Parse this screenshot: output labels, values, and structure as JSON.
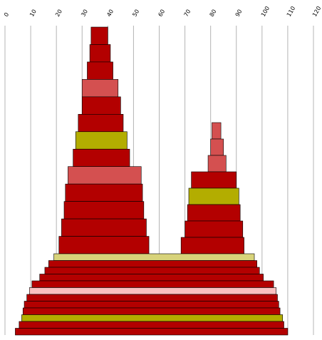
{
  "chart_data": {
    "type": "bar",
    "orientation": "horizontal",
    "grid": true,
    "legend": "none",
    "x_axis": {
      "position": "top",
      "range": [
        0,
        120
      ],
      "ticks": [
        "0",
        "10",
        "20",
        "30",
        "40",
        "50",
        "60",
        "70",
        "80",
        "90",
        "100",
        "110",
        "120"
      ]
    },
    "colors": {
      "red": "#b30000",
      "salmon": "#d45050",
      "olive": "#b3ad00",
      "pink": "#fac0c0",
      "light_olive": "#d8d37a",
      "grid": "#b4b4b4"
    },
    "groups": [
      {
        "id": "left-peak",
        "bars": [
          {
            "x0": 33.5,
            "x1": 40.0,
            "color": "red"
          },
          {
            "x0": 33.0,
            "x1": 41.0,
            "color": "red"
          },
          {
            "x0": 32.0,
            "x1": 42.0,
            "color": "red"
          },
          {
            "x0": 30.0,
            "x1": 44.0,
            "color": "salmon"
          },
          {
            "x0": 30.0,
            "x1": 45.0,
            "color": "red"
          },
          {
            "x0": 28.5,
            "x1": 46.0,
            "color": "red"
          },
          {
            "x0": 27.5,
            "x1": 47.5,
            "color": "olive"
          },
          {
            "x0": 26.5,
            "x1": 48.5,
            "color": "red"
          },
          {
            "x0": 24.5,
            "x1": 53.0,
            "color": "salmon"
          },
          {
            "x0": 23.5,
            "x1": 53.5,
            "color": "red"
          },
          {
            "x0": 23.0,
            "x1": 54.0,
            "color": "red"
          },
          {
            "x0": 22.0,
            "x1": 55.0,
            "color": "red"
          },
          {
            "x0": 21.0,
            "x1": 56.0,
            "color": "red"
          }
        ]
      },
      {
        "id": "right-peak",
        "bars": [
          {
            "x0": 80.5,
            "x1": 84.0,
            "color": "salmon"
          },
          {
            "x0": 80.0,
            "x1": 85.0,
            "color": "salmon"
          },
          {
            "x0": 79.0,
            "x1": 86.0,
            "color": "salmon"
          },
          {
            "x0": 72.5,
            "x1": 90.0,
            "color": "red"
          },
          {
            "x0": 71.5,
            "x1": 91.0,
            "color": "olive"
          },
          {
            "x0": 71.0,
            "x1": 91.5,
            "color": "red"
          },
          {
            "x0": 70.0,
            "x1": 92.5,
            "color": "red"
          },
          {
            "x0": 68.5,
            "x1": 93.0,
            "color": "red"
          }
        ]
      },
      {
        "id": "base",
        "bars": [
          {
            "x0": 19.0,
            "x1": 97.0,
            "color": "light_olive"
          },
          {
            "x0": 17.0,
            "x1": 98.0,
            "color": "red"
          },
          {
            "x0": 15.5,
            "x1": 99.0,
            "color": "red"
          },
          {
            "x0": 13.5,
            "x1": 100.5,
            "color": "red"
          },
          {
            "x0": 10.5,
            "x1": 104.5,
            "color": "red"
          },
          {
            "x0": 9.5,
            "x1": 105.5,
            "color": "pink"
          },
          {
            "x0": 8.5,
            "x1": 106.0,
            "color": "red"
          },
          {
            "x0": 7.5,
            "x1": 106.5,
            "color": "red"
          },
          {
            "x0": 7.0,
            "x1": 107.0,
            "color": "red"
          },
          {
            "x0": 6.5,
            "x1": 108.0,
            "color": "olive"
          },
          {
            "x0": 5.5,
            "x1": 108.5,
            "color": "red"
          },
          {
            "x0": 4.0,
            "x1": 110.0,
            "color": "red"
          }
        ]
      }
    ]
  }
}
